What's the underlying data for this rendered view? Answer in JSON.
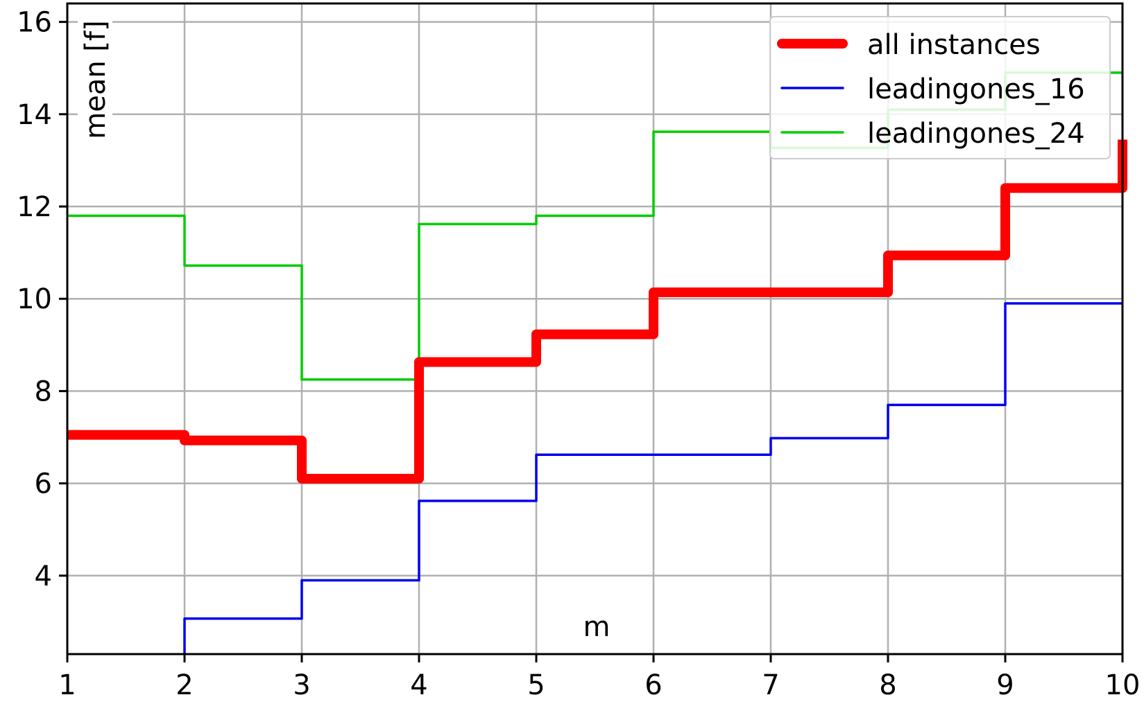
{
  "chart_data": {
    "type": "line",
    "step": "post",
    "xlabel": "m",
    "ylabel": "mean [f]",
    "xlim": [
      1,
      10
    ],
    "ylim": [
      2.3,
      16.4
    ],
    "xticks": [
      1,
      2,
      3,
      4,
      5,
      6,
      7,
      8,
      9,
      10
    ],
    "yticks": [
      4,
      6,
      8,
      10,
      12,
      14,
      16
    ],
    "grid": true,
    "legend_position": "top-right",
    "series": [
      {
        "name": "all instances",
        "color": "#ff0000",
        "x": [
          1,
          2,
          3,
          4,
          5,
          6,
          7,
          8,
          9,
          10
        ],
        "y": [
          7.05,
          6.93,
          6.1,
          8.63,
          9.23,
          10.14,
          10.14,
          10.94,
          12.4,
          13.45
        ]
      },
      {
        "name": "leadingones_16",
        "color": "#0000ee",
        "x": [
          2,
          3,
          4,
          5,
          6,
          7,
          8,
          9,
          10
        ],
        "y": [
          3.07,
          3.9,
          5.62,
          6.62,
          6.62,
          6.98,
          7.7,
          9.9,
          9.9
        ]
      },
      {
        "name": "leadingones_24",
        "color": "#00cc00",
        "x": [
          1,
          2,
          3,
          4,
          5,
          6,
          7,
          8,
          9,
          10
        ],
        "y": [
          11.8,
          10.72,
          8.25,
          11.62,
          11.8,
          13.62,
          13.27,
          14.1,
          14.9,
          14.9
        ]
      }
    ]
  }
}
